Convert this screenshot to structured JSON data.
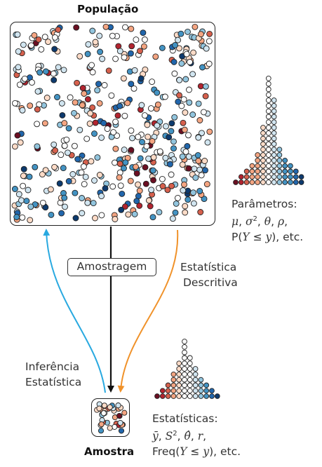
{
  "population": {
    "title": "População"
  },
  "sample": {
    "title": "Amostra"
  },
  "process": {
    "sampling_label": "Amostragem",
    "descriptive_line1": "Estatística",
    "descriptive_line2": "Descritiva",
    "inference_line1": "Inferência",
    "inference_line2": "Estatística"
  },
  "parameters": {
    "heading": "Parâmetros:",
    "mu": "μ",
    "sigma": "σ",
    "sq": "2",
    "theta": "θ",
    "rho": "ρ",
    "prob": "P(",
    "Y": "Y",
    "le": " ≤ ",
    "y": "y",
    "etc": "), etc.",
    "sep": ", "
  },
  "statistics": {
    "heading": "Estatísticas:",
    "ybar": "ȳ",
    "S": "S",
    "sq": "2",
    "thetahat": "θ̂",
    "r": "r",
    "freq": "Freq(",
    "Y": "Y",
    "le": " ≤ ",
    "y": "y",
    "etc": "), etc.",
    "sep": ", "
  },
  "colors": {
    "arrow_inference": "#29a9e0",
    "arrow_descriptive": "#f0922a",
    "arrow_sampling": "#111111",
    "palette": [
      "#6b0f22",
      "#b2242f",
      "#d6604d",
      "#f4a582",
      "#fddbc7",
      "#ffffff",
      "#d1e5f0",
      "#92c5de",
      "#4393c3",
      "#2166ac",
      "#0d3a6e"
    ]
  },
  "distributions": {
    "population_histogram_counts": [
      1,
      2,
      3,
      4,
      6,
      11,
      20,
      16,
      7,
      5,
      4,
      3,
      2
    ],
    "sample_histogram_counts": [
      1,
      2,
      3,
      5,
      7,
      11,
      8,
      6,
      4,
      3,
      2,
      1
    ]
  }
}
